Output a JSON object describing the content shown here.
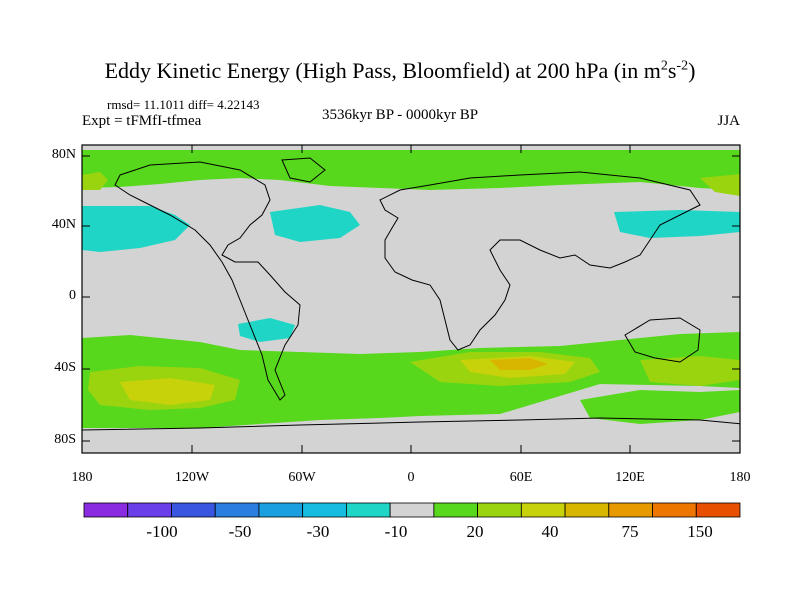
{
  "header": {
    "title_main": "Eddy Kinetic Energy (High Pass, Bloomfield) at 200 hPa (in m",
    "title_sup1": "2",
    "title_s": "s",
    "title_sup2": "-2",
    "title_end": ")",
    "stats": "rmsd= 11.1011 diff= 4.22143",
    "experiment": "Expt = tFMfI-tfmea",
    "period": "3536kyr BP - 0000kyr BP",
    "season": "JJA"
  },
  "map": {
    "lat_labels": [
      "80N",
      "40N",
      "0",
      "40S",
      "80S"
    ],
    "lon_labels": [
      "180",
      "120W",
      "60W",
      "0",
      "60E",
      "120E",
      "180"
    ],
    "land_color": "#d3d3d3",
    "coast_color": "#000000"
  },
  "colorbar": {
    "colors": [
      "#8a2be2",
      "#6a3ee8",
      "#3a55e0",
      "#2a7ee0",
      "#1a9fe0",
      "#17bde0",
      "#1fd6c6",
      "#d3d3d3",
      "#57d81c",
      "#9ad40f",
      "#c7d20a",
      "#d8b600",
      "#e69a00",
      "#ec7600",
      "#e85000"
    ],
    "labels": [
      "-100",
      "-50",
      "-30",
      "-10",
      "20",
      "40",
      "75",
      "150"
    ]
  }
}
